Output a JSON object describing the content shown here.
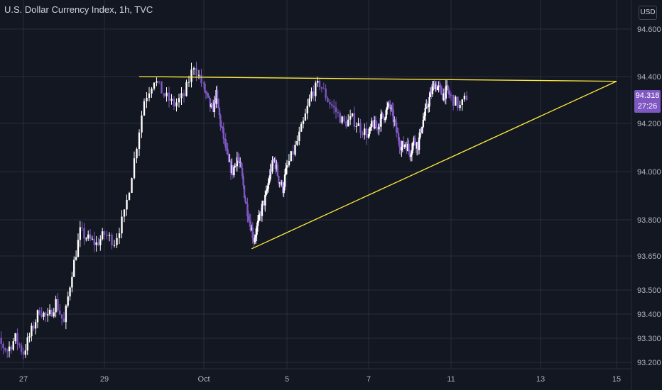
{
  "header": {
    "title": "U.S. Dollar Currency Index, 1h, TVC",
    "currency": "USD"
  },
  "last_price": {
    "value": "94.318",
    "countdown": "27:26"
  },
  "colors": {
    "background": "#131722",
    "grid": "#2a2e39",
    "up_candle": "#ffffff",
    "down_candle": "#7e57c2",
    "trendline": "#ffeb3b",
    "badge": "#7e57c2"
  },
  "chart_data": {
    "type": "candlestick",
    "title": "U.S. Dollar Currency Index, 1h, TVC",
    "interval": "1h",
    "source": "TVC",
    "y_ticks": [
      94.6,
      94.4,
      94.2,
      94.0,
      93.8,
      93.65,
      93.5,
      93.4,
      93.3,
      93.2
    ],
    "y_tick_labels": [
      "94.600",
      "94.400",
      "94.200",
      "94.000",
      "93.800",
      "93.650",
      "93.500",
      "93.400",
      "93.300",
      "93.200"
    ],
    "x_tick_labels": [
      "27",
      "29",
      "Oct",
      "5",
      "7",
      "11",
      "13",
      "15"
    ],
    "x_tick_values": [
      -4,
      -2,
      0,
      4,
      6,
      10,
      12,
      14
    ],
    "x_range": [
      -5.2,
      15.2
    ],
    "y_range": [
      93.19,
      94.7
    ],
    "price_path": [
      [
        -5.0,
        93.22
      ],
      [
        -4.8,
        93.36
      ],
      [
        -4.6,
        93.28
      ],
      [
        -4.4,
        93.25
      ],
      [
        -4.2,
        93.3
      ],
      [
        -4.0,
        93.24
      ],
      [
        -3.8,
        93.33
      ],
      [
        -3.6,
        93.42
      ],
      [
        -3.4,
        93.38
      ],
      [
        -3.2,
        93.45
      ],
      [
        -3.0,
        93.36
      ],
      [
        -2.8,
        93.58
      ],
      [
        -2.6,
        93.75
      ],
      [
        -2.4,
        93.72
      ],
      [
        -2.2,
        93.7
      ],
      [
        -2.0,
        93.74
      ],
      [
        -1.8,
        93.71
      ],
      [
        -1.6,
        93.82
      ],
      [
        -1.4,
        94.05
      ],
      [
        -1.2,
        94.3
      ],
      [
        -1.0,
        94.39
      ],
      [
        -0.8,
        94.32
      ],
      [
        -0.6,
        94.28
      ],
      [
        -0.4,
        94.32
      ],
      [
        -0.2,
        94.45
      ],
      [
        0.0,
        94.35
      ],
      [
        0.2,
        94.3
      ],
      [
        0.4,
        94.25
      ],
      [
        0.6,
        94.32
      ],
      [
        0.8,
        94.2
      ],
      [
        1.0,
        94.12
      ],
      [
        1.2,
        94.03
      ],
      [
        1.4,
        94.0
      ],
      [
        1.6,
        94.06
      ],
      [
        1.8,
        94.0
      ],
      [
        2.0,
        93.88
      ],
      [
        2.2,
        93.8
      ],
      [
        2.4,
        93.72
      ],
      [
        2.6,
        93.78
      ],
      [
        2.8,
        93.85
      ],
      [
        3.0,
        93.9
      ],
      [
        3.2,
        94.0
      ],
      [
        3.4,
        94.05
      ],
      [
        3.6,
        93.97
      ],
      [
        3.8,
        93.93
      ],
      [
        4.0,
        94.02
      ],
      [
        4.2,
        94.1
      ],
      [
        4.4,
        94.2
      ],
      [
        4.6,
        94.33
      ],
      [
        4.8,
        94.37
      ],
      [
        5.0,
        94.3
      ],
      [
        5.2,
        94.25
      ],
      [
        5.4,
        94.2
      ],
      [
        5.6,
        94.22
      ],
      [
        5.8,
        94.18
      ],
      [
        6.0,
        94.15
      ],
      [
        6.2,
        94.2
      ],
      [
        6.4,
        94.18
      ],
      [
        6.6,
        94.22
      ],
      [
        6.8,
        94.24
      ],
      [
        7.0,
        94.28
      ],
      [
        7.2,
        94.22
      ],
      [
        7.4,
        94.15
      ],
      [
        7.6,
        94.1
      ],
      [
        7.8,
        94.12
      ],
      [
        8.0,
        94.08
      ],
      [
        8.2,
        94.13
      ],
      [
        8.4,
        94.11
      ],
      [
        8.6,
        94.2
      ],
      [
        8.8,
        94.26
      ],
      [
        9.0,
        94.32
      ],
      [
        9.2,
        94.37
      ],
      [
        9.4,
        94.35
      ],
      [
        9.6,
        94.32
      ],
      [
        9.8,
        94.34
      ],
      [
        10.0,
        94.31
      ],
      [
        10.2,
        94.27
      ],
      [
        10.4,
        94.33
      ]
    ],
    "annotations": [
      {
        "type": "trendline",
        "name": "resistance",
        "from": [
          -1.3,
          94.4
        ],
        "to": [
          14.0,
          94.38
        ]
      },
      {
        "type": "trendline",
        "name": "support",
        "from": [
          2.3,
          93.68
        ],
        "to": [
          14.0,
          94.38
        ]
      }
    ],
    "grid": true,
    "price_scale_position": "right"
  }
}
